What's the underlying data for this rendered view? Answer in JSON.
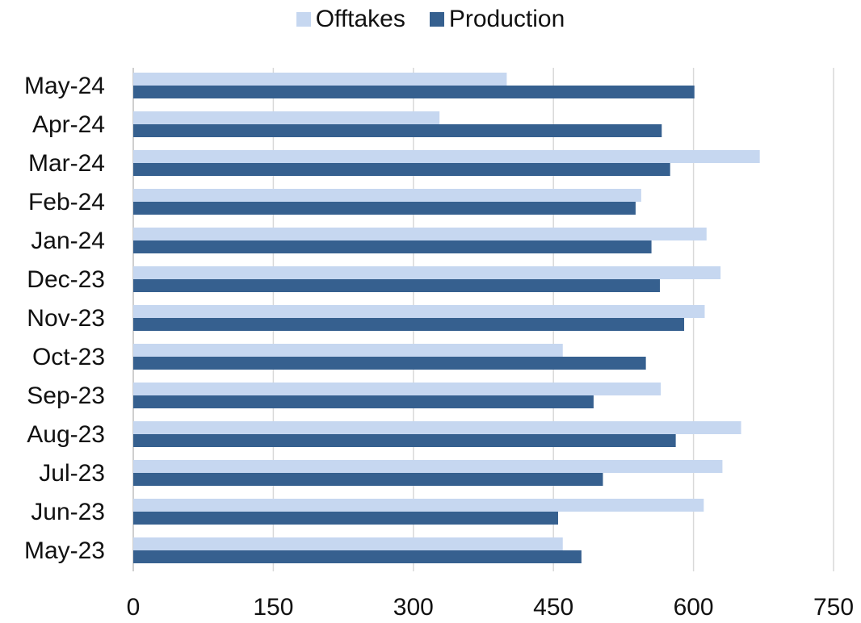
{
  "chart_data": {
    "type": "bar",
    "orientation": "horizontal",
    "title": "",
    "xlabel": "",
    "ylabel": "",
    "xlim": [
      0,
      750
    ],
    "x_ticks": [
      0,
      150,
      300,
      450,
      600,
      750
    ],
    "grid": true,
    "legend_position": "top",
    "categories": [
      "May-24",
      "Apr-24",
      "Mar-24",
      "Feb-24",
      "Jan-24",
      "Dec-23",
      "Nov-23",
      "Oct-23",
      "Sep-23",
      "Aug-23",
      "Jul-23",
      "Jun-23",
      "May-23"
    ],
    "series": [
      {
        "name": "Offtakes",
        "color": "#c6d7f0",
        "values": [
          400,
          328,
          671,
          544,
          614,
          629,
          612,
          460,
          565,
          651,
          631,
          611,
          460
        ]
      },
      {
        "name": "Production",
        "color": "#36608f",
        "values": [
          601,
          566,
          575,
          538,
          555,
          564,
          590,
          549,
          493,
          581,
          503,
          455,
          480
        ]
      }
    ]
  }
}
